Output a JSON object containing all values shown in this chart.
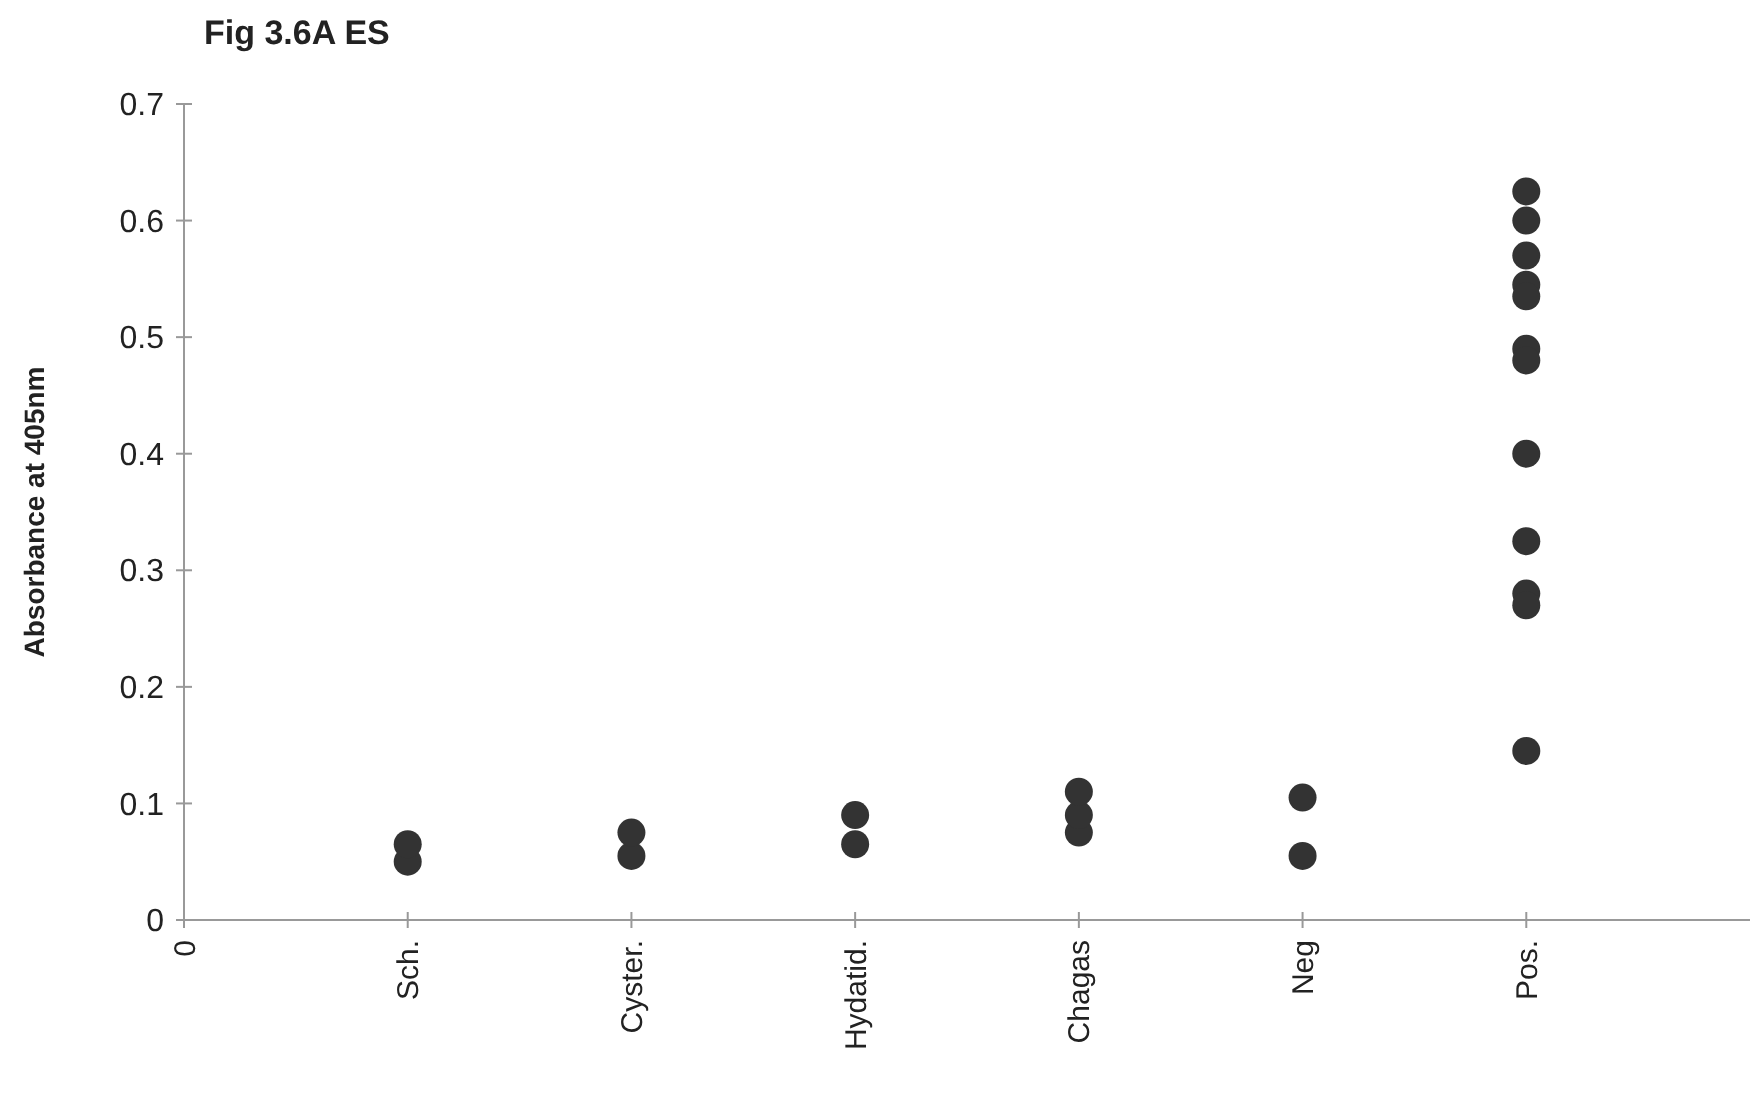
{
  "chart_data": {
    "type": "scatter",
    "title": "Fig 3.6A ES",
    "ylabel": "Absorbance at 405nm",
    "categories": [
      "0",
      "Sch.",
      "Cyster.",
      "Hydatid.",
      "Chagas",
      "Neg",
      "Pos.",
      null
    ],
    "series": [
      {
        "color": "#333333",
        "x": [
          "Sch.",
          "Sch.",
          "Cyster.",
          "Cyster.",
          "Hydatid.",
          "Hydatid.",
          "Chagas",
          "Chagas",
          "Chagas",
          "Neg",
          "Neg",
          "Pos.",
          "Pos.",
          "Pos.",
          "Pos.",
          "Pos.",
          "Pos.",
          "Pos.",
          "Pos.",
          "Pos.",
          "Pos.",
          "Pos.",
          "Pos."
        ],
        "values": [
          0.05,
          0.065,
          0.055,
          0.075,
          0.065,
          0.09,
          0.075,
          0.09,
          0.11,
          0.055,
          0.105,
          0.625,
          0.6,
          0.57,
          0.545,
          0.535,
          0.49,
          0.48,
          0.4,
          0.325,
          0.28,
          0.27,
          0.145
        ]
      }
    ],
    "ylim": [
      0,
      0.7
    ],
    "yticks": [
      0,
      0.1,
      0.2,
      0.3,
      0.4,
      0.5,
      0.6,
      0.7
    ],
    "marker": "circle",
    "grid": false
  }
}
